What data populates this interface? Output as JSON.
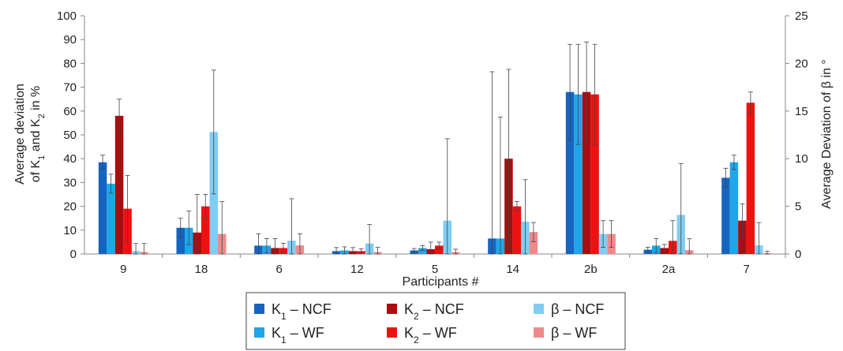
{
  "chart_data": {
    "type": "bar",
    "xlabel": "Participants #",
    "ylabel_left_line1": "Average  deviation",
    "ylabel_left_line2": "of K",
    "ylabel_left_sub1": "1",
    "ylabel_left_mid": " and K",
    "ylabel_left_sub2": "2",
    "ylabel_left_end": " in %",
    "ylabel_right": "Average  Deviation of β in °",
    "ylim_left": [
      0,
      100
    ],
    "ylim_right": [
      0,
      25
    ],
    "yticks_left": [
      "0",
      "10",
      "20",
      "30",
      "40",
      "50",
      "60",
      "70",
      "80",
      "90",
      "100"
    ],
    "yticks_right": [
      "0",
      "5",
      "10",
      "15",
      "20",
      "25"
    ],
    "categories": [
      "9",
      "18",
      "6",
      "12",
      "5",
      "14",
      "2b",
      "2a",
      "7"
    ],
    "grid": false,
    "legend_position": "bottom",
    "series": [
      {
        "id": "k1ncf",
        "legend_main": "K",
        "legend_sub": "1",
        "legend_rest": " – NCF",
        "color": "#1565c0",
        "axis": "left",
        "values": [
          38.5,
          11,
          3.5,
          1.2,
          1.5,
          6.5,
          68,
          1.8,
          32
        ],
        "err": [
          3,
          4,
          5,
          1.5,
          0.8,
          70,
          20,
          1,
          4
        ]
      },
      {
        "id": "k1wf",
        "legend_main": "K",
        "legend_sub": "1",
        "legend_rest": " – WF",
        "color": "#1ea6e8",
        "axis": "left",
        "values": [
          29.5,
          11,
          3.5,
          1.5,
          2.5,
          6.5,
          67,
          3.5,
          38.5
        ],
        "err": [
          4,
          7,
          3,
          1.5,
          1,
          51,
          21,
          3,
          3
        ]
      },
      {
        "id": "k2ncf",
        "legend_main": "K",
        "legend_sub": "2",
        "legend_rest": " – NCF",
        "color": "#a80e10",
        "axis": "left",
        "values": [
          58,
          9,
          2.5,
          1.2,
          2,
          40,
          68,
          2.5,
          14
        ],
        "err": [
          7,
          16,
          4,
          1.5,
          3,
          37.5,
          21,
          1.5,
          7
        ]
      },
      {
        "id": "k2wf",
        "legend_main": "K",
        "legend_sub": "2",
        "legend_rest": " – WF",
        "color": "#ee1111",
        "axis": "left",
        "values": [
          19,
          20,
          2.5,
          1.2,
          3.5,
          20,
          67,
          5.5,
          63.5
        ],
        "err": [
          14,
          5,
          2,
          1,
          1.5,
          2,
          21,
          8.5,
          4.5
        ]
      },
      {
        "id": "bncf",
        "legend_main": "β  – NCF",
        "legend_sub": "",
        "legend_rest": "",
        "color": "#80cdf3",
        "axis": "right",
        "values": [
          0.3,
          12.8,
          1.4,
          1.1,
          3.5,
          3.4,
          2.1,
          4.1,
          0.9
        ],
        "err": [
          0.8,
          6.5,
          4.4,
          2,
          8.6,
          4.4,
          1.4,
          5.4,
          2.4
        ]
      },
      {
        "id": "bwf",
        "legend_main": "β – WF",
        "legend_sub": "",
        "legend_rest": "",
        "color": "#f08a8a",
        "axis": "right",
        "values": [
          0.2,
          2.1,
          0.9,
          0.2,
          0.2,
          2.3,
          2.1,
          0.4,
          0.1
        ],
        "err": [
          0.9,
          3.4,
          1.2,
          0.5,
          0.3,
          1,
          1.4,
          1.2,
          0.2
        ]
      }
    ]
  }
}
